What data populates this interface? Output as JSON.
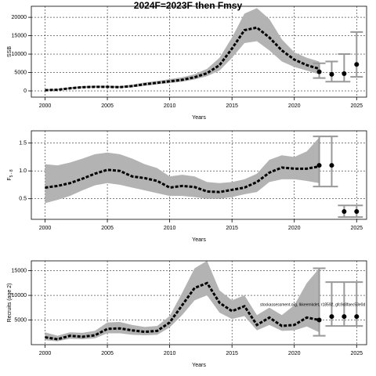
{
  "title": "2024F=2023F then Fmsy",
  "chart_data": [
    {
      "type": "line",
      "xlabel": "Years",
      "ylabel": "SSB",
      "x": [
        2000,
        2001,
        2002,
        2003,
        2004,
        2005,
        2006,
        2007,
        2008,
        2009,
        2010,
        2011,
        2012,
        2013,
        2014,
        2015,
        2016,
        2017,
        2018,
        2019,
        2020,
        2021,
        2022
      ],
      "series": [
        {
          "color": "#000000",
          "values": [
            200,
            300,
            700,
            1000,
            1100,
            1100,
            1000,
            1300,
            1800,
            2200,
            2600,
            3000,
            3700,
            4800,
            7000,
            11500,
            16500,
            17200,
            14500,
            11000,
            8500,
            7000,
            6000
          ]
        }
      ],
      "band": {
        "color": "#b3b3b3",
        "lower": [
          100,
          200,
          500,
          800,
          900,
          900,
          800,
          1000,
          1400,
          1800,
          2100,
          2500,
          3100,
          4000,
          5500,
          9000,
          13000,
          13500,
          11000,
          8000,
          6500,
          5500,
          4500
        ],
        "upper": [
          400,
          500,
          1000,
          1300,
          1400,
          1400,
          1300,
          1700,
          2300,
          2700,
          3200,
          3700,
          4500,
          6000,
          9000,
          14500,
          21000,
          22500,
          19500,
          14000,
          10500,
          9000,
          8000
        ]
      },
      "forecast": {
        "color": "#999999",
        "x": [
          2022,
          2023,
          2024,
          2025
        ],
        "values": [
          5200,
          4500,
          4700,
          7200
        ],
        "lower": [
          3500,
          2500,
          2500,
          3800
        ],
        "upper": [
          7500,
          8000,
          10000,
          16000
        ]
      },
      "xlim": [
        1998.9,
        2025.8
      ],
      "xticks": [
        2000,
        2005,
        2010,
        2015,
        2020,
        2025
      ],
      "ylim": [
        -1700,
        23000
      ],
      "yticks": [
        0,
        5000,
        10000,
        15000,
        20000
      ],
      "grid": true
    },
    {
      "type": "line",
      "xlabel": "Years",
      "ylabel": "F",
      "ylabel_sub": "5 - 8",
      "x": [
        2000,
        2001,
        2002,
        2003,
        2004,
        2005,
        2006,
        2007,
        2008,
        2009,
        2010,
        2011,
        2012,
        2013,
        2014,
        2015,
        2016,
        2017,
        2018,
        2019,
        2020,
        2021,
        2022
      ],
      "series": [
        {
          "color": "#000000",
          "values": [
            0.7,
            0.73,
            0.78,
            0.86,
            0.95,
            1.02,
            1.0,
            0.9,
            0.87,
            0.82,
            0.7,
            0.73,
            0.71,
            0.63,
            0.62,
            0.66,
            0.7,
            0.8,
            0.97,
            1.06,
            1.04,
            1.04,
            1.08
          ]
        }
      ],
      "band": {
        "color": "#b3b3b3",
        "lower": [
          0.42,
          0.48,
          0.55,
          0.65,
          0.74,
          0.78,
          0.75,
          0.7,
          0.65,
          0.6,
          0.55,
          0.55,
          0.53,
          0.5,
          0.5,
          0.53,
          0.58,
          0.62,
          0.8,
          0.85,
          0.85,
          0.82,
          0.78
        ],
        "upper": [
          1.12,
          1.1,
          1.15,
          1.22,
          1.3,
          1.33,
          1.3,
          1.22,
          1.12,
          1.05,
          0.9,
          0.93,
          0.9,
          0.8,
          0.78,
          0.8,
          0.85,
          0.95,
          1.2,
          1.28,
          1.25,
          1.35,
          1.6
        ]
      },
      "forecast": {
        "color": "#999999",
        "x": [
          2022,
          2023,
          2024,
          2025
        ],
        "values": [
          1.1,
          1.1,
          0.27,
          0.27
        ],
        "lower": [
          0.72,
          0.72,
          0.17,
          0.17
        ],
        "upper": [
          1.62,
          1.62,
          0.38,
          0.38
        ]
      },
      "xlim": [
        1998.9,
        2025.8
      ],
      "xticks": [
        2000,
        2005,
        2010,
        2015,
        2020,
        2025
      ],
      "ylim": [
        0.13,
        1.72
      ],
      "yticks": [
        0.5,
        {
          "value": 1,
          "label": "1.0"
        },
        1.5
      ],
      "grid": true
    },
    {
      "type": "line",
      "xlabel": "Years",
      "ylabel": "Recruits (age 2)",
      "annotation": "stockassessment.org, lkkeemkdet, r18592, gfc9c8faec53e0d",
      "x": [
        2000,
        2001,
        2002,
        2003,
        2004,
        2005,
        2006,
        2007,
        2008,
        2009,
        2010,
        2011,
        2012,
        2013,
        2014,
        2015,
        2016,
        2017,
        2018,
        2019,
        2020,
        2021,
        2022
      ],
      "series": [
        {
          "color": "#000000",
          "values": [
            1500,
            1100,
            1800,
            1600,
            1900,
            3200,
            3300,
            2900,
            2600,
            2800,
            4500,
            8000,
            11500,
            12500,
            8500,
            6800,
            7800,
            4000,
            5500,
            3800,
            4000,
            5500,
            5000
          ]
        }
      ],
      "band": {
        "color": "#b3b3b3",
        "lower": [
          900,
          700,
          1200,
          1100,
          1300,
          2300,
          2300,
          2000,
          1900,
          2000,
          3500,
          6000,
          9000,
          10000,
          6500,
          5200,
          5800,
          2900,
          4000,
          2800,
          2900,
          3700,
          2500
        ],
        "upper": [
          2500,
          1800,
          2500,
          2400,
          2800,
          4500,
          4600,
          4000,
          3600,
          3800,
          5800,
          10500,
          15500,
          17000,
          11000,
          9000,
          10000,
          6000,
          7500,
          6000,
          8000,
          12500,
          15500
        ]
      },
      "forecast": {
        "color": "#999999",
        "x": [
          2022,
          2023,
          2024,
          2025
        ],
        "values": [
          5000,
          5700,
          5700,
          5700
        ],
        "lower": [
          1800,
          3800,
          3800,
          3800
        ],
        "upper": [
          15500,
          12700,
          12700,
          12700
        ]
      },
      "xlim": [
        1998.9,
        2025.8
      ],
      "xticks": [
        2000,
        2005,
        2010,
        2015,
        2020,
        2025
      ],
      "ylim": [
        0,
        17000
      ],
      "yticks": [
        5000,
        10000,
        15000
      ],
      "grid": true
    }
  ]
}
